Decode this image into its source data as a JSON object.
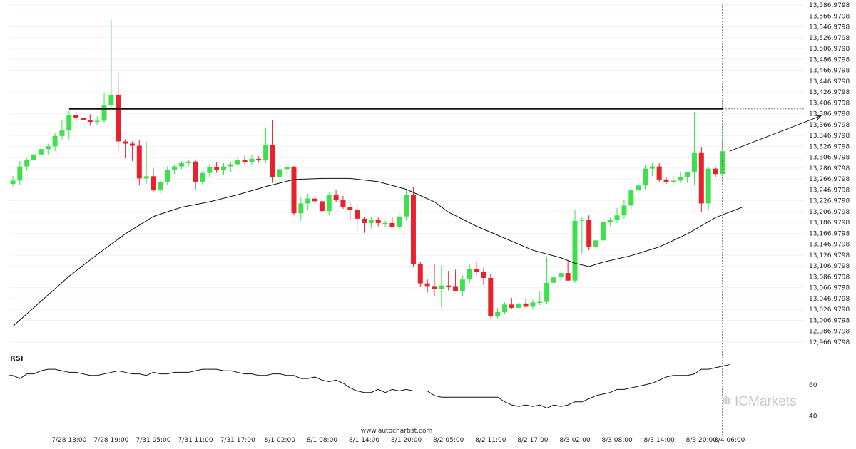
{
  "chart_data": {
    "type": "candlestick",
    "y_ticks": [
      "13,586.9798",
      "13,566.9798",
      "13,546.9798",
      "13,526.9798",
      "13,506.9798",
      "13,486.9798",
      "13,466.9798",
      "13,446.9798",
      "13,426.9798",
      "13,406.9798",
      "13,386.9798",
      "13,366.9798",
      "13,346.9798",
      "13,326.9798",
      "13,306.9798",
      "13,286.9798",
      "13,266.9798",
      "13,246.9798",
      "13,226.9798",
      "13,206.9798",
      "13,186.9798",
      "13,166.9798",
      "13,146.9798",
      "13,126.9798",
      "13,106.9798",
      "13,086.9798",
      "13,066.9798",
      "13,046.9798",
      "13,026.9798",
      "13,006.9798",
      "12,986.9798",
      "12,966.9798"
    ],
    "ylim": [
      12966.9798,
      13586.9798
    ],
    "x_ticks": [
      {
        "label": "7/28 13:00",
        "index": 8
      },
      {
        "label": "7/28 19:00",
        "index": 14
      },
      {
        "label": "7/31 05:00",
        "index": 20
      },
      {
        "label": "7/31 11:00",
        "index": 26
      },
      {
        "label": "7/31 17:00",
        "index": 32
      },
      {
        "label": "8/1 02:00",
        "index": 38
      },
      {
        "label": "8/1 08:00",
        "index": 44
      },
      {
        "label": "8/1 14:00",
        "index": 50
      },
      {
        "label": "8/1 20:00",
        "index": 56
      },
      {
        "label": "8/2 05:00",
        "index": 62
      },
      {
        "label": "8/2 11:00",
        "index": 68
      },
      {
        "label": "8/2 17:00",
        "index": 74
      },
      {
        "label": "8/3 02:00",
        "index": 80
      },
      {
        "label": "8/3 08:00",
        "index": 86
      },
      {
        "label": "8/3 14:00",
        "index": 92
      },
      {
        "label": "8/3 20:00",
        "index": 98
      },
      {
        "label": "8/4 06:00",
        "index": 102
      }
    ],
    "ohlc": [
      [
        13258,
        13272,
        13253,
        13264
      ],
      [
        13264,
        13300,
        13256,
        13290
      ],
      [
        13290,
        13306,
        13282,
        13302
      ],
      [
        13302,
        13320,
        13295,
        13312
      ],
      [
        13312,
        13328,
        13304,
        13322
      ],
      [
        13322,
        13332,
        13312,
        13327
      ],
      [
        13327,
        13352,
        13318,
        13346
      ],
      [
        13346,
        13375,
        13338,
        13356
      ],
      [
        13356,
        13392,
        13340,
        13384
      ],
      [
        13384,
        13392,
        13370,
        13379
      ],
      [
        13379,
        13385,
        13360,
        13375
      ],
      [
        13375,
        13386,
        13365,
        13372
      ],
      [
        13372,
        13382,
        13366,
        13374
      ],
      [
        13374,
        13426,
        13370,
        13402
      ],
      [
        13402,
        13560,
        13395,
        13422
      ],
      [
        13422,
        13462,
        13318,
        13336
      ],
      [
        13336,
        13340,
        13305,
        13332
      ],
      [
        13332,
        13336,
        13300,
        13328
      ],
      [
        13328,
        13338,
        13255,
        13268
      ],
      [
        13268,
        13335,
        13258,
        13272
      ],
      [
        13272,
        13286,
        13242,
        13246
      ],
      [
        13246,
        13266,
        13240,
        13262
      ],
      [
        13262,
        13290,
        13256,
        13284
      ],
      [
        13284,
        13292,
        13276,
        13290
      ],
      [
        13290,
        13300,
        13285,
        13296
      ],
      [
        13296,
        13303,
        13290,
        13299
      ],
      [
        13299,
        13302,
        13248,
        13262
      ],
      [
        13262,
        13282,
        13255,
        13278
      ],
      [
        13278,
        13294,
        13270,
        13289
      ],
      [
        13289,
        13298,
        13278,
        13284
      ],
      [
        13284,
        13296,
        13275,
        13290
      ],
      [
        13290,
        13298,
        13280,
        13294
      ],
      [
        13294,
        13308,
        13288,
        13302
      ],
      [
        13302,
        13310,
        13294,
        13298
      ],
      [
        13298,
        13312,
        13292,
        13304
      ],
      [
        13304,
        13309,
        13297,
        13302
      ],
      [
        13302,
        13362,
        13296,
        13330
      ],
      [
        13330,
        13376,
        13260,
        13270
      ],
      [
        13270,
        13292,
        13264,
        13285
      ],
      [
        13285,
        13292,
        13275,
        13289
      ],
      [
        13289,
        13291,
        13200,
        13204
      ],
      [
        13204,
        13234,
        13190,
        13222
      ],
      [
        13222,
        13240,
        13210,
        13231
      ],
      [
        13231,
        13236,
        13220,
        13226
      ],
      [
        13226,
        13232,
        13200,
        13208
      ],
      [
        13208,
        13242,
        13200,
        13238
      ],
      [
        13238,
        13246,
        13225,
        13228
      ],
      [
        13228,
        13236,
        13212,
        13216
      ],
      [
        13216,
        13226,
        13190,
        13210
      ],
      [
        13210,
        13220,
        13172,
        13194
      ],
      [
        13194,
        13196,
        13168,
        13186
      ],
      [
        13186,
        13198,
        13176,
        13192
      ],
      [
        13192,
        13196,
        13180,
        13186
      ],
      [
        13186,
        13190,
        13178,
        13186
      ],
      [
        13186,
        13196,
        13180,
        13178
      ],
      [
        13178,
        13206,
        13174,
        13198
      ],
      [
        13198,
        13246,
        13190,
        13238
      ],
      [
        13238,
        13252,
        13105,
        13110
      ],
      [
        13110,
        13115,
        13068,
        13075
      ],
      [
        13075,
        13082,
        13058,
        13070
      ],
      [
        13070,
        13110,
        13052,
        13065
      ],
      [
        13065,
        13108,
        13030,
        13071
      ],
      [
        13071,
        13098,
        13062,
        13070
      ],
      [
        13070,
        13100,
        13060,
        13060
      ],
      [
        13060,
        13090,
        13052,
        13082
      ],
      [
        13082,
        13110,
        13075,
        13102
      ],
      [
        13102,
        13115,
        13090,
        13096
      ],
      [
        13096,
        13104,
        13072,
        13085
      ],
      [
        13085,
        13092,
        13012,
        13015
      ],
      [
        13015,
        13030,
        13010,
        13022
      ],
      [
        13022,
        13040,
        13018,
        13036
      ],
      [
        13036,
        13048,
        13028,
        13030
      ],
      [
        13030,
        13040,
        13026,
        13038
      ],
      [
        13038,
        13046,
        13030,
        13032
      ],
      [
        13032,
        13045,
        13028,
        13040
      ],
      [
        13040,
        13060,
        13035,
        13041
      ],
      [
        13041,
        13124,
        13036,
        13076
      ],
      [
        13076,
        13110,
        13068,
        13086
      ],
      [
        13086,
        13100,
        13078,
        13094
      ],
      [
        13094,
        13116,
        13084,
        13080
      ],
      [
        13080,
        13210,
        13076,
        13190
      ],
      [
        13190,
        13196,
        13130,
        13192
      ],
      [
        13192,
        13200,
        13136,
        13142
      ],
      [
        13142,
        13160,
        13136,
        13154
      ],
      [
        13154,
        13192,
        13148,
        13188
      ],
      [
        13188,
        13196,
        13180,
        13192
      ],
      [
        13192,
        13214,
        13186,
        13200
      ],
      [
        13200,
        13228,
        13194,
        13218
      ],
      [
        13218,
        13250,
        13212,
        13246
      ],
      [
        13246,
        13272,
        13236,
        13255
      ],
      [
        13255,
        13292,
        13248,
        13286
      ],
      [
        13286,
        13296,
        13272,
        13290
      ],
      [
        13290,
        13296,
        13262,
        13266
      ],
      [
        13266,
        13270,
        13258,
        13262
      ],
      [
        13262,
        13272,
        13256,
        13264
      ],
      [
        13264,
        13280,
        13260,
        13270
      ],
      [
        13270,
        13278,
        13260,
        13280
      ],
      [
        13280,
        13390,
        13256,
        13316
      ],
      [
        13316,
        13326,
        13206,
        13222
      ],
      [
        13222,
        13290,
        13210,
        13286
      ],
      [
        13286,
        13290,
        13270,
        13276
      ],
      [
        13276,
        13366,
        13266,
        13318
      ]
    ],
    "ma": [
      [
        0,
        12996
      ],
      [
        4,
        13042
      ],
      [
        8,
        13088
      ],
      [
        12,
        13128
      ],
      [
        16,
        13166
      ],
      [
        20,
        13198
      ],
      [
        24,
        13215
      ],
      [
        28,
        13225
      ],
      [
        32,
        13238
      ],
      [
        36,
        13253
      ],
      [
        40,
        13266
      ],
      [
        44,
        13268
      ],
      [
        48,
        13268
      ],
      [
        52,
        13262
      ],
      [
        56,
        13248
      ],
      [
        60,
        13225
      ],
      [
        62,
        13206
      ],
      [
        66,
        13180
      ],
      [
        70,
        13158
      ],
      [
        74,
        13136
      ],
      [
        78,
        13122
      ],
      [
        80,
        13112
      ],
      [
        82,
        13106
      ],
      [
        84,
        13114
      ],
      [
        88,
        13126
      ],
      [
        92,
        13142
      ],
      [
        96,
        13166
      ],
      [
        100,
        13196
      ],
      [
        104,
        13216
      ]
    ],
    "resistance": {
      "value": 13396,
      "from_index": 8
    },
    "projection": {
      "from": [
        102,
        13318
      ],
      "to": [
        115,
        13383
      ]
    },
    "rsi": {
      "label": "RSI",
      "ticks": [
        "60",
        "40"
      ],
      "ylim": [
        36,
        82
      ],
      "values": [
        66,
        64,
        67,
        67,
        69,
        70,
        70,
        69,
        68,
        68,
        67,
        66,
        66,
        67,
        68,
        69,
        68,
        67,
        67,
        66,
        68,
        67,
        67,
        68,
        68,
        68,
        69,
        70,
        70,
        70,
        69,
        69,
        68,
        67,
        67,
        66,
        66,
        67,
        67,
        66,
        66,
        64,
        64,
        65,
        63,
        62,
        63,
        61,
        58,
        56,
        55,
        55,
        57,
        55,
        57,
        56,
        57,
        56,
        56,
        56,
        53,
        52,
        52,
        52,
        52,
        52,
        52,
        52,
        52,
        52,
        49,
        47,
        46,
        47,
        46,
        47,
        45,
        47,
        46,
        47,
        49,
        49,
        51,
        53,
        54,
        55,
        57,
        57,
        58,
        59,
        60,
        61,
        63,
        65,
        66,
        66,
        66,
        67,
        70,
        70,
        71,
        72,
        73
      ]
    }
  },
  "footer": {
    "watermark": "www.autochartist.com",
    "brand": "ICMarkets"
  },
  "colors": {
    "bull": "#3ee04e",
    "bear": "#e8212c",
    "line": "#111111",
    "grid": "#f2f2f2"
  }
}
